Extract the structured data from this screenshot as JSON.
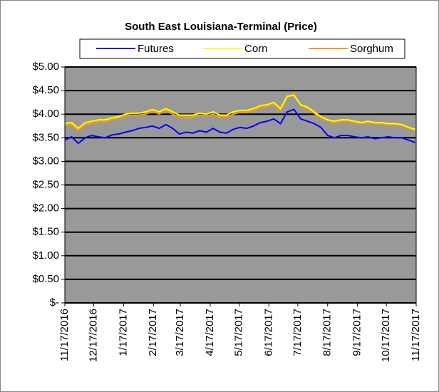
{
  "chart_data": {
    "type": "line",
    "title": "South East Louisiana-Terminal (Price)",
    "x": [
      "11/17/2016",
      "11/24/2016",
      "12/1/2016",
      "12/8/2016",
      "12/15/2016",
      "12/22/2016",
      "12/29/2016",
      "1/5/2017",
      "1/12/2017",
      "1/19/2017",
      "1/26/2017",
      "2/2/2017",
      "2/9/2017",
      "2/16/2017",
      "2/23/2017",
      "3/2/2017",
      "3/9/2017",
      "3/16/2017",
      "3/23/2017",
      "3/30/2017",
      "4/6/2017",
      "4/13/2017",
      "4/20/2017",
      "4/27/2017",
      "5/4/2017",
      "5/11/2017",
      "5/18/2017",
      "5/25/2017",
      "6/1/2017",
      "6/8/2017",
      "6/15/2017",
      "6/22/2017",
      "6/29/2017",
      "7/6/2017",
      "7/13/2017",
      "7/20/2017",
      "7/27/2017",
      "8/3/2017",
      "8/10/2017",
      "8/17/2017",
      "8/24/2017",
      "8/31/2017",
      "9/7/2017",
      "9/14/2017",
      "9/21/2017",
      "9/28/2017",
      "10/5/2017",
      "10/12/2017",
      "10/19/2017",
      "10/26/2017",
      "11/2/2017",
      "11/9/2017",
      "11/16/2017"
    ],
    "series": [
      {
        "name": "Futures",
        "color": "#0000ff",
        "values": [
          3.45,
          3.52,
          3.38,
          3.5,
          3.55,
          3.52,
          3.5,
          3.56,
          3.58,
          3.62,
          3.65,
          3.7,
          3.72,
          3.75,
          3.7,
          3.78,
          3.7,
          3.58,
          3.62,
          3.6,
          3.65,
          3.62,
          3.7,
          3.62,
          3.6,
          3.68,
          3.72,
          3.7,
          3.75,
          3.82,
          3.85,
          3.9,
          3.8,
          4.05,
          4.1,
          3.9,
          3.85,
          3.8,
          3.72,
          3.55,
          3.5,
          3.55,
          3.55,
          3.52,
          3.5,
          3.52,
          3.48,
          3.5,
          3.52,
          3.5,
          3.5,
          3.45,
          3.4
        ]
      },
      {
        "name": "Corn",
        "color": "#ffff00",
        "values": [
          3.8,
          3.82,
          3.7,
          3.82,
          3.85,
          3.88,
          3.88,
          3.92,
          3.95,
          4.0,
          4.02,
          4.02,
          4.05,
          4.1,
          4.05,
          4.12,
          4.05,
          3.98,
          3.98,
          3.98,
          4.02,
          4.0,
          4.05,
          3.98,
          3.98,
          4.05,
          4.08,
          4.08,
          4.12,
          4.18,
          4.2,
          4.25,
          4.12,
          4.38,
          4.4,
          4.2,
          4.15,
          4.05,
          3.95,
          3.88,
          3.85,
          3.88,
          3.88,
          3.85,
          3.82,
          3.85,
          3.82,
          3.82,
          3.8,
          3.8,
          3.78,
          3.72,
          3.68
        ]
      },
      {
        "name": "Sorghum",
        "color": "#ff9900",
        "values": [
          3.76,
          3.78,
          3.66,
          3.78,
          3.8,
          3.84,
          3.84,
          3.88,
          3.92,
          3.96,
          3.98,
          3.98,
          4.0,
          4.06,
          4.0,
          4.08,
          4.0,
          3.94,
          3.92,
          3.94,
          3.98,
          3.96,
          4.0,
          3.94,
          3.94,
          4.0,
          4.04,
          4.04,
          4.08,
          4.14,
          4.16,
          4.2,
          4.08,
          4.34,
          4.44,
          4.18,
          4.12,
          4.02,
          3.92,
          3.86,
          3.82,
          3.85,
          3.85,
          3.82,
          3.8,
          3.82,
          3.8,
          3.8,
          3.78,
          3.78,
          3.76,
          3.7,
          3.65
        ]
      }
    ],
    "xlim": [
      "11/17/2016",
      "11/17/2017"
    ],
    "xticks": [
      "11/17/2016",
      "12/17/2016",
      "1/17/2017",
      "2/17/2017",
      "3/17/2017",
      "4/17/2017",
      "5/17/2017",
      "6/17/2017",
      "7/17/2017",
      "8/17/2017",
      "9/17/2017",
      "10/17/2017",
      "11/17/2017"
    ],
    "ylim": [
      0,
      5
    ],
    "yticks": [
      {
        "value": 0,
        "label": "$-"
      },
      {
        "value": 0.5,
        "label": "$0.50"
      },
      {
        "value": 1,
        "label": "$1.00"
      },
      {
        "value": 1.5,
        "label": "$1.50"
      },
      {
        "value": 2,
        "label": "$2.00"
      },
      {
        "value": 2.5,
        "label": "$2.50"
      },
      {
        "value": 3,
        "label": "$3.00"
      },
      {
        "value": 3.5,
        "label": "$3.50"
      },
      {
        "value": 4,
        "label": "$4.00"
      },
      {
        "value": 4.5,
        "label": "$4.50"
      },
      {
        "value": 5,
        "label": "$5.00"
      }
    ],
    "grid": true,
    "plot_background": "#999999",
    "legend": "top"
  }
}
